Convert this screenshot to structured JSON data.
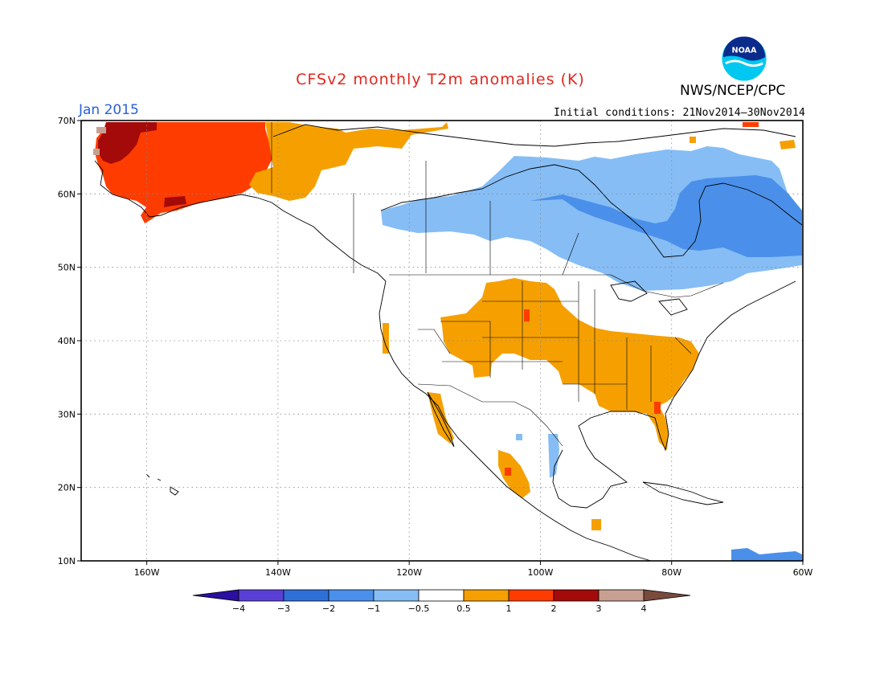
{
  "header": {
    "title": "CFSv2 monthly T2m anomalies (K)",
    "agency": "NWS/NCEP/CPC",
    "valid_month": "Jan 2015",
    "initial_conditions": "Initial conditions: 21Nov2014–30Nov2014",
    "logo_text": "NOAA"
  },
  "map": {
    "lat_range": [
      10,
      70
    ],
    "lon_range": [
      -170,
      -60
    ],
    "lat_ticks": [
      "70N",
      "60N",
      "50N",
      "40N",
      "30N",
      "20N",
      "10N"
    ],
    "lon_ticks": [
      "160W",
      "140W",
      "120W",
      "100W",
      "80W",
      "60W"
    ],
    "grid": "dotted"
  },
  "colorbar": {
    "labels": [
      "−4",
      "−3",
      "−2",
      "−1",
      "−0.5",
      "0.5",
      "1",
      "2",
      "3",
      "4"
    ],
    "colors": [
      "#2a0fa0",
      "#5a3fd6",
      "#2f6fd8",
      "#4a90ea",
      "#86bdf5",
      "#ffffff",
      "#f5a000",
      "#ff3c00",
      "#a50a0a",
      "#c8a092",
      "#7a4a3c"
    ]
  },
  "chart_data": {
    "type": "heatmap",
    "title": "CFSv2 monthly T2m anomalies (K)",
    "period": "Jan 2015",
    "levels": [
      -4,
      -3,
      -2,
      -1,
      -0.5,
      0.5,
      1,
      2,
      3,
      4
    ],
    "regions": [
      {
        "area": "Alaska",
        "anomaly_range": "1 to 3"
      },
      {
        "area": "Yukon",
        "anomaly_range": "0.5 to 1"
      },
      {
        "area": "Central/Eastern Canada",
        "anomaly_range": "-2 to -0.5"
      },
      {
        "area": "Northern Quebec / Labrador",
        "anomaly_range": "-2 to -1"
      },
      {
        "area": "Central & Southeastern US",
        "anomaly_range": "0.5 to 1"
      },
      {
        "area": "Florida",
        "anomaly_range": "0.5 to 2"
      },
      {
        "area": "Western Mexico",
        "anomaly_range": "0.5 to 2"
      }
    ]
  }
}
